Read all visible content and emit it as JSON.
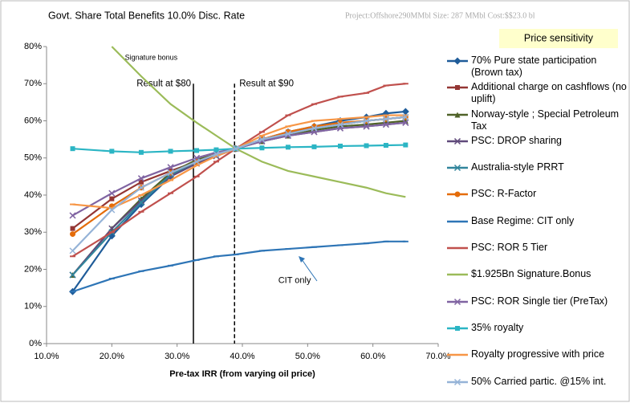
{
  "chart_data": {
    "type": "line",
    "title": "Govt. Share Total Benefits 10.0% Disc. Rate",
    "subtitle": "Project:Offshore290MMbl   Size: 287 MMbl Cost:$$23.0 bl",
    "badge": "Price sensitivity",
    "x_label": "Pre-tax IRR (from varying oil price)",
    "x": [
      14,
      20,
      24.5,
      29,
      33,
      36,
      39,
      43,
      47,
      51,
      55,
      59,
      62,
      65
    ],
    "xlim": [
      10,
      70
    ],
    "xticks": [
      {
        "value": 10,
        "label": "10.0%"
      },
      {
        "value": 20,
        "label": "20.0%"
      },
      {
        "value": 30,
        "label": "30.0%"
      },
      {
        "value": 40,
        "label": "40.0%"
      },
      {
        "value": 50,
        "label": "50.0%"
      },
      {
        "value": 60,
        "label": "60.0%"
      },
      {
        "value": 70,
        "label": "70.0%"
      }
    ],
    "ylim": [
      0,
      80
    ],
    "yticks": [
      {
        "value": 0,
        "label": "0%"
      },
      {
        "value": 10,
        "label": "10%"
      },
      {
        "value": 20,
        "label": "20%"
      },
      {
        "value": 30,
        "label": "30%"
      },
      {
        "value": 40,
        "label": "40%"
      },
      {
        "value": 50,
        "label": "50%"
      },
      {
        "value": 60,
        "label": "60%"
      },
      {
        "value": 70,
        "label": "70%"
      },
      {
        "value": 80,
        "label": "80%"
      }
    ],
    "grid": false,
    "vlines": [
      {
        "x": 32.5,
        "label": "Result at $80",
        "style": "solid"
      },
      {
        "x": 38.8,
        "label": "Result at $90",
        "style": "dashed"
      }
    ],
    "annotations": [
      {
        "text": "Signature bonus",
        "x": 22,
        "y": 77
      },
      {
        "text": "CIT only",
        "x": 45.5,
        "y": 17
      }
    ],
    "series": [
      {
        "name": "70% Pure state participation (Brown tax)",
        "color": "#1f5c99",
        "marker": "diamond",
        "values": [
          14,
          29,
          37.5,
          45,
          49,
          51,
          52.5,
          55,
          57,
          58.5,
          60,
          61,
          62,
          62.5
        ]
      },
      {
        "name": "Additional charge on cashflows (no uplift)",
        "color": "#943634",
        "marker": "square",
        "values": [
          31,
          39,
          43.5,
          46.5,
          49,
          51,
          52.5,
          55,
          57,
          58,
          59,
          60,
          60.5,
          61
        ]
      },
      {
        "name": "Norway-style ; Special Petroleum Tax",
        "color": "#4f6228",
        "marker": "triangle",
        "values": [
          18.5,
          31,
          39,
          46,
          49.5,
          51,
          52.5,
          54.5,
          56,
          57.5,
          58.5,
          59,
          59.5,
          60
        ]
      },
      {
        "name": "PSC: DROP sharing",
        "color": "#604a7b",
        "marker": "x",
        "values": [
          18.5,
          31,
          38.5,
          45,
          48.5,
          50.5,
          52.5,
          54.5,
          56,
          57,
          58,
          58.5,
          59,
          59.5
        ]
      },
      {
        "name": "Australia-style PRRT",
        "color": "#31859c",
        "marker": "x",
        "values": [
          18.5,
          30,
          38,
          45.5,
          49,
          51,
          52.5,
          55,
          56.5,
          58,
          59,
          60,
          60.5,
          61
        ]
      },
      {
        "name": "PSC: R-Factor",
        "color": "#e46c0a",
        "marker": "circle",
        "values": [
          29.5,
          37,
          42,
          46,
          49,
          51,
          52.5,
          55,
          57,
          58.5,
          59.5,
          60,
          60.5,
          61
        ]
      },
      {
        "name": "Base Regime: CIT only",
        "color": "#2e75b6",
        "marker": "dash",
        "values": [
          14,
          17.5,
          19.5,
          21,
          22.5,
          23.5,
          24,
          25,
          25.5,
          26,
          26.5,
          27,
          27.5,
          27.5
        ]
      },
      {
        "name": "PSC: ROR 5 Tier",
        "color": "#c0504d",
        "marker": "dash",
        "values": [
          23.5,
          30,
          35.5,
          40.5,
          45,
          49,
          52.5,
          57,
          61.5,
          64.5,
          66.5,
          67.5,
          69.5,
          70
        ]
      },
      {
        "name": "$1.925Bn Signature.Bonus",
        "color": "#9bbb59",
        "marker": "none",
        "values": [
          null,
          80,
          72,
          64.5,
          59.5,
          56,
          52.5,
          49,
          46.5,
          45,
          43.5,
          42,
          40.5,
          39.5
        ]
      },
      {
        "name": "PSC: ROR Single tier  (PreTax)",
        "color": "#8064a2",
        "marker": "x",
        "values": [
          34.5,
          40.5,
          44.5,
          47.5,
          50,
          51.5,
          52.5,
          54.5,
          56,
          57,
          58,
          58.5,
          59,
          59.5
        ]
      },
      {
        "name": "35% royalty",
        "color": "#2bb5c4",
        "marker": "square",
        "values": [
          52.5,
          51.8,
          51.5,
          51.8,
          52,
          52.2,
          52.5,
          52.7,
          52.9,
          53,
          53.2,
          53.3,
          53.4,
          53.5
        ]
      },
      {
        "name": "Royalty progressive with price",
        "color": "#f79646",
        "marker": "dash",
        "values": [
          37.5,
          36.5,
          40,
          44,
          48,
          50.5,
          52.5,
          56,
          58.5,
          60,
          60.5,
          61,
          61.5,
          61.5
        ]
      },
      {
        "name": "50% Carried partic. @15% int.",
        "color": "#95b3d7",
        "marker": "x",
        "values": [
          25,
          36,
          42,
          46,
          49,
          51,
          52.5,
          55,
          56.5,
          58,
          59,
          60,
          60.5,
          61
        ]
      }
    ]
  }
}
